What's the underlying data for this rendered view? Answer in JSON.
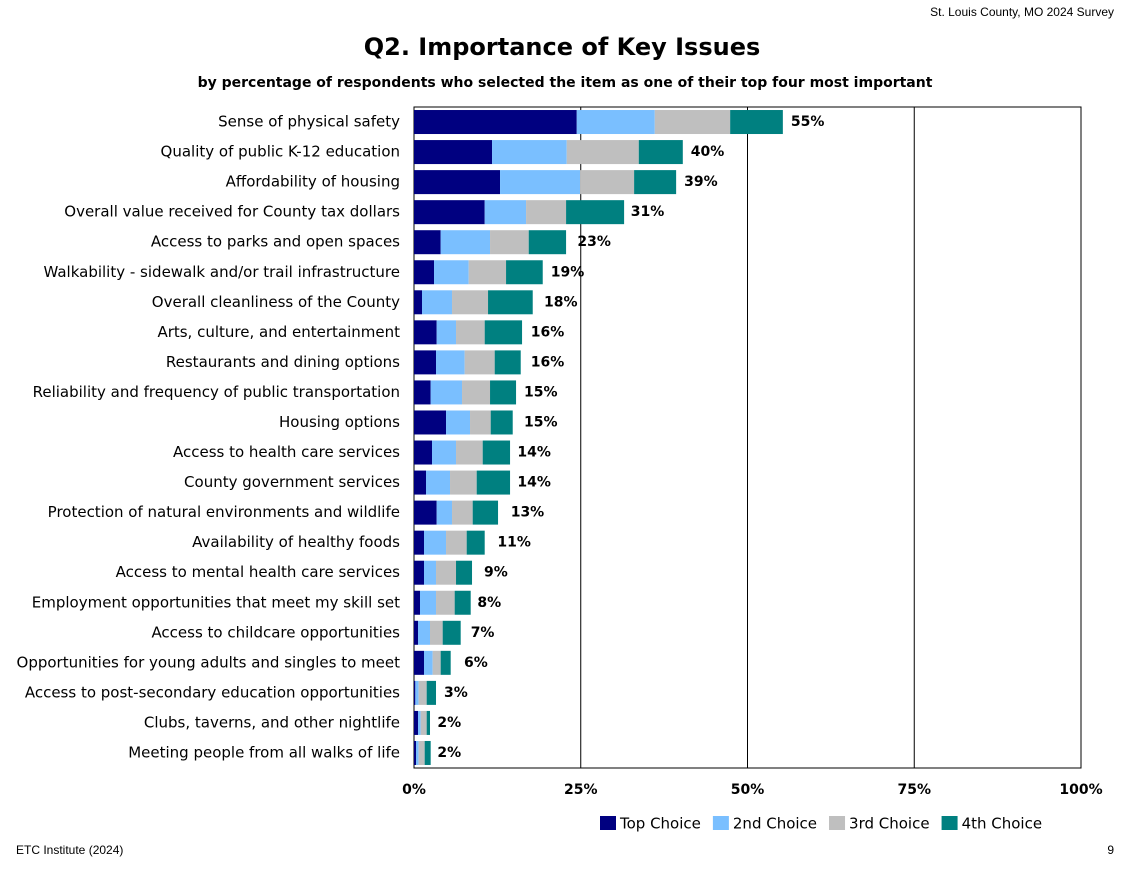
{
  "chart_data": {
    "type": "stacked_barh",
    "header": "St. Louis County, MO 2024 Survey",
    "title": "Q2. Importance of Key Issues",
    "subtitle": "by percentage of respondents who selected the item as one of their top four most important",
    "footer": "ETC Institute (2024)",
    "page_number": "9",
    "categories": [
      "Sense of physical safety",
      "Quality of public K-12 education",
      "Affordability of housing",
      "Overall value received for County tax dollars",
      "Access to parks and open spaces",
      "Walkability - sidewalk and/or trail infrastructure",
      "Overall cleanliness of the County",
      "Arts, culture, and entertainment",
      "Restaurants and dining options",
      "Reliability and frequency of public transportation",
      "Housing options",
      "Access to health care services",
      "County government services",
      "Protection of natural environments and wildlife",
      "Availability of healthy foods",
      "Access to mental health care services",
      "Employment opportunities that meet my skill set",
      "Access to childcare opportunities",
      "Opportunities for young adults and singles to meet",
      "Access to post-secondary education opportunities",
      "Clubs, taverns, and other nightlife",
      "Meeting people from all walks of life"
    ],
    "series": [
      {
        "name": "Top Choice",
        "color": "#000080",
        "values": [
          24.4,
          11.7,
          12.9,
          10.6,
          4.0,
          3.0,
          1.2,
          3.4,
          3.3,
          2.5,
          4.8,
          2.7,
          1.8,
          3.4,
          1.5,
          1.5,
          0.9,
          0.6,
          1.5,
          0.2,
          0.6,
          0.3
        ]
      },
      {
        "name": "2nd Choice",
        "color": "#7abfff",
        "values": [
          11.7,
          11.2,
          12.0,
          6.2,
          7.4,
          5.2,
          4.5,
          2.9,
          4.3,
          4.7,
          3.6,
          3.6,
          3.6,
          2.3,
          3.3,
          1.8,
          2.4,
          1.8,
          1.3,
          0.5,
          0.4,
          0.4
        ]
      },
      {
        "name": "3rd Choice",
        "color": "#bfbfbf",
        "values": [
          11.3,
          10.8,
          8.1,
          6.0,
          5.8,
          5.6,
          5.4,
          4.3,
          4.5,
          4.2,
          3.1,
          4.0,
          4.0,
          3.1,
          3.1,
          3.0,
          2.8,
          1.9,
          1.2,
          1.2,
          0.9,
          0.9
        ]
      },
      {
        "name": "4th Choice",
        "color": "#008080",
        "values": [
          7.9,
          6.6,
          6.3,
          8.7,
          5.6,
          5.5,
          6.7,
          5.6,
          3.9,
          3.9,
          3.3,
          4.1,
          5.0,
          3.8,
          2.7,
          2.4,
          2.4,
          2.7,
          1.5,
          1.4,
          0.5,
          0.9
        ]
      }
    ],
    "totals": {
      "values": [
        55,
        40,
        39,
        31,
        23,
        19,
        18,
        16,
        16,
        15,
        15,
        14,
        14,
        13,
        11,
        9,
        8,
        7,
        6,
        3,
        2,
        2
      ],
      "value_labels": [
        "55%",
        "40%",
        "39%",
        "31%",
        "23%",
        "19%",
        "18%",
        "16%",
        "16%",
        "15%",
        "15%",
        "14%",
        "14%",
        "13%",
        "11%",
        "9%",
        "8%",
        "7%",
        "6%",
        "3%",
        "2%",
        "2%"
      ]
    },
    "xlim": [
      0,
      100
    ],
    "xticks": [
      {
        "value": 0,
        "label": "0%"
      },
      {
        "value": 25,
        "label": "25%"
      },
      {
        "value": 50,
        "label": "50%"
      },
      {
        "value": 75,
        "label": "75%"
      },
      {
        "value": 100,
        "label": "100%"
      }
    ],
    "grid": true,
    "legend": "bottom"
  }
}
